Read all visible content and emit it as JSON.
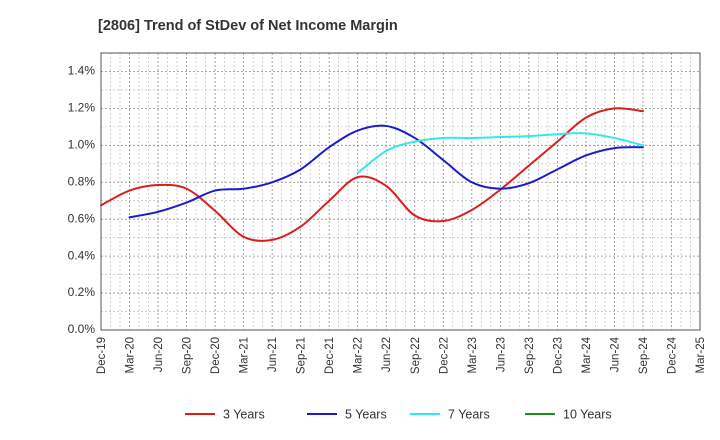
{
  "chart_data": {
    "type": "line",
    "title": "[2806]  Trend of StDev of Net Income Margin",
    "x": [
      "Dec-19",
      "Mar-20",
      "Jun-20",
      "Sep-20",
      "Dec-20",
      "Mar-21",
      "Jun-21",
      "Sep-21",
      "Dec-21",
      "Mar-22",
      "Jun-22",
      "Sep-22",
      "Dec-22",
      "Mar-23",
      "Jun-23",
      "Sep-23",
      "Dec-23",
      "Mar-24",
      "Jun-24",
      "Sep-24",
      "Dec-24",
      "Mar-25"
    ],
    "y_ticks": [
      "0.0%",
      "0.2%",
      "0.4%",
      "0.6%",
      "0.8%",
      "1.0%",
      "1.2%",
      "1.4%"
    ],
    "ylim": [
      0,
      1.5
    ],
    "y_unit": "%",
    "grid": true,
    "legend_position": "bottom",
    "series": [
      {
        "name": "3 Years",
        "color": "#dd1c1c",
        "values": [
          0.675,
          0.755,
          0.785,
          0.765,
          0.645,
          0.505,
          0.488,
          0.56,
          0.7,
          0.828,
          0.78,
          0.62,
          0.59,
          0.65,
          0.76,
          0.89,
          1.02,
          1.15,
          1.2,
          1.185,
          null,
          null
        ]
      },
      {
        "name": "5 Years",
        "color": "#1c1ccc",
        "values": [
          null,
          0.61,
          0.64,
          0.69,
          0.755,
          0.765,
          0.8,
          0.87,
          0.99,
          1.08,
          1.105,
          1.04,
          0.92,
          0.8,
          0.765,
          0.795,
          0.87,
          0.945,
          0.985,
          0.99,
          null,
          null
        ]
      },
      {
        "name": "7 Years",
        "color": "#33e8e8",
        "values": [
          null,
          null,
          null,
          null,
          null,
          null,
          null,
          null,
          null,
          0.85,
          0.97,
          1.02,
          1.04,
          1.04,
          1.045,
          1.05,
          1.06,
          1.065,
          1.04,
          1.0,
          null,
          null
        ]
      },
      {
        "name": "10 Years",
        "color": "#1f8a1f",
        "values": [
          null,
          null,
          null,
          null,
          null,
          null,
          null,
          null,
          null,
          null,
          null,
          null,
          null,
          null,
          null,
          null,
          null,
          null,
          null,
          null,
          null,
          null
        ]
      }
    ]
  }
}
